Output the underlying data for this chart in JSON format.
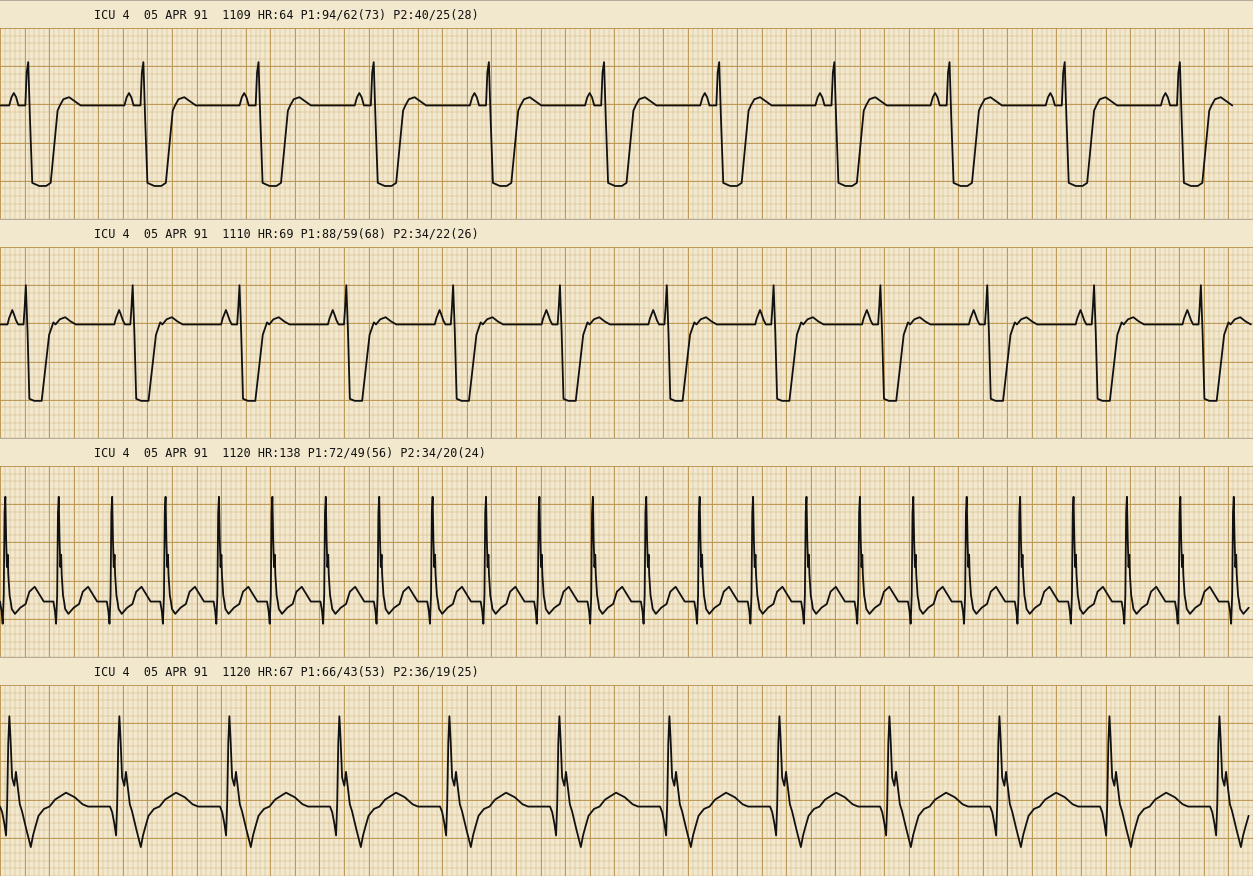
{
  "bg_color": "#f2e8ce",
  "label_bg_color": "#ede8d5",
  "grid_minor_color": "#c8a96e",
  "grid_major_color": "#b8924a",
  "ecg_color": "#111111",
  "text_color": "#111111",
  "strips": [
    {
      "label": "ICU 4  05 APR 91  1109 HR:64 P1:94/62(73) P2:40/25(28)",
      "hr": 64,
      "style": "strip1"
    },
    {
      "label": "ICU 4  05 APR 91  1110 HR:69 P1:88/59(68) P2:34/22(26)",
      "hr": 69,
      "style": "strip2"
    },
    {
      "label": "ICU 4  05 APR 91  1120 HR:138 P1:72/49(56) P2:34/20(24)",
      "hr": 138,
      "style": "strip3"
    },
    {
      "label": "ICU 4  05 APR 91  1120 HR:67 P1:66/43(53) P2:36/19(25)",
      "hr": 67,
      "style": "strip4"
    }
  ],
  "fig_width": 12.53,
  "fig_height": 8.76,
  "dpi": 100
}
